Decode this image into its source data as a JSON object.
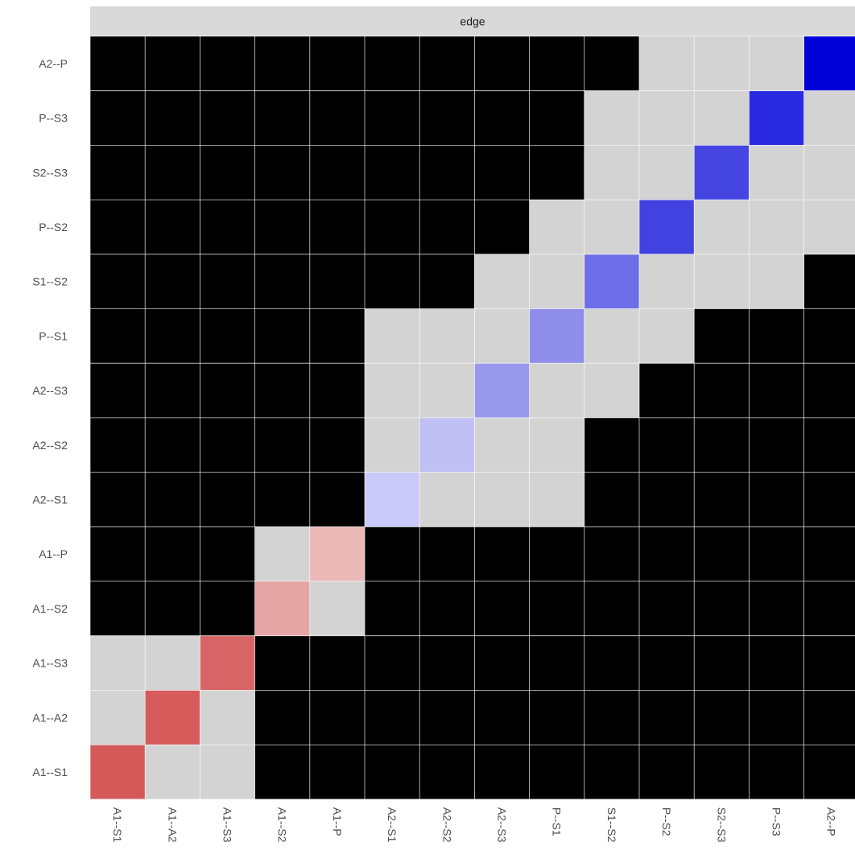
{
  "chart_data": {
    "type": "heatmap",
    "title": "",
    "xlabel": "",
    "ylabel": "",
    "facet_label": "edge",
    "x_categories": [
      "A1--S1",
      "A1--A2",
      "A1--S3",
      "A1--S2",
      "A1--P",
      "A2--S1",
      "A2--S2",
      "A2--S3",
      "P--S1",
      "S1--S2",
      "P--S2",
      "S2--S3",
      "P--S3",
      "A2--P"
    ],
    "y_categories": [
      "A1--S1",
      "A1--A2",
      "A1--S3",
      "A1--S2",
      "A1--P",
      "A2--S1",
      "A2--S2",
      "A2--S3",
      "P--S1",
      "S1--S2",
      "P--S2",
      "S2--S3",
      "P--S3",
      "A2--P"
    ],
    "cell_values_note_colors": {
      "black": "#000000",
      "grey": "#d3d3d3"
    },
    "cells": [
      [
        "#d45a5a",
        "#d3d3d3",
        "#d3d3d3",
        "#000000",
        "#000000",
        "#000000",
        "#000000",
        "#000000",
        "#000000",
        "#000000",
        "#000000",
        "#000000",
        "#000000",
        "#000000"
      ],
      [
        "#d3d3d3",
        "#d65c5c",
        "#d3d3d3",
        "#000000",
        "#000000",
        "#000000",
        "#000000",
        "#000000",
        "#000000",
        "#000000",
        "#000000",
        "#000000",
        "#000000",
        "#000000"
      ],
      [
        "#d3d3d3",
        "#d3d3d3",
        "#d76565",
        "#000000",
        "#000000",
        "#000000",
        "#000000",
        "#000000",
        "#000000",
        "#000000",
        "#000000",
        "#000000",
        "#000000",
        "#000000"
      ],
      [
        "#000000",
        "#000000",
        "#000000",
        "#e6a5a5",
        "#d3d3d3",
        "#000000",
        "#000000",
        "#000000",
        "#000000",
        "#000000",
        "#000000",
        "#000000",
        "#000000",
        "#000000"
      ],
      [
        "#000000",
        "#000000",
        "#000000",
        "#d3d3d3",
        "#ebb8b8",
        "#000000",
        "#000000",
        "#000000",
        "#000000",
        "#000000",
        "#000000",
        "#000000",
        "#000000",
        "#000000"
      ],
      [
        "#000000",
        "#000000",
        "#000000",
        "#000000",
        "#000000",
        "#cacafa",
        "#d3d3d3",
        "#d3d3d3",
        "#d3d3d3",
        "#000000",
        "#000000",
        "#000000",
        "#000000",
        "#000000"
      ],
      [
        "#000000",
        "#000000",
        "#000000",
        "#000000",
        "#000000",
        "#d3d3d3",
        "#c0c0f4",
        "#d3d3d3",
        "#d3d3d3",
        "#000000",
        "#000000",
        "#000000",
        "#000000",
        "#000000"
      ],
      [
        "#000000",
        "#000000",
        "#000000",
        "#000000",
        "#000000",
        "#d3d3d3",
        "#d3d3d3",
        "#9898ec",
        "#d3d3d3",
        "#d3d3d3",
        "#000000",
        "#000000",
        "#000000",
        "#000000"
      ],
      [
        "#000000",
        "#000000",
        "#000000",
        "#000000",
        "#000000",
        "#d3d3d3",
        "#d3d3d3",
        "#d3d3d3",
        "#8e8eea",
        "#d3d3d3",
        "#d3d3d3",
        "#000000",
        "#000000",
        "#000000"
      ],
      [
        "#000000",
        "#000000",
        "#000000",
        "#000000",
        "#000000",
        "#000000",
        "#000000",
        "#d3d3d3",
        "#d3d3d3",
        "#6e6ee8",
        "#d3d3d3",
        "#d3d3d3",
        "#d3d3d3",
        "#000000"
      ],
      [
        "#000000",
        "#000000",
        "#000000",
        "#000000",
        "#000000",
        "#000000",
        "#000000",
        "#000000",
        "#d3d3d3",
        "#d3d3d3",
        "#4242e0",
        "#d3d3d3",
        "#d3d3d3",
        "#d3d3d3"
      ],
      [
        "#000000",
        "#000000",
        "#000000",
        "#000000",
        "#000000",
        "#000000",
        "#000000",
        "#000000",
        "#000000",
        "#d3d3d3",
        "#d3d3d3",
        "#4545e2",
        "#d3d3d3",
        "#d3d3d3"
      ],
      [
        "#000000",
        "#000000",
        "#000000",
        "#000000",
        "#000000",
        "#000000",
        "#000000",
        "#000000",
        "#000000",
        "#d3d3d3",
        "#d3d3d3",
        "#d3d3d3",
        "#2a2ae0",
        "#d3d3d3"
      ],
      [
        "#000000",
        "#000000",
        "#000000",
        "#000000",
        "#000000",
        "#000000",
        "#000000",
        "#000000",
        "#000000",
        "#000000",
        "#d3d3d3",
        "#d3d3d3",
        "#d3d3d3",
        "#0000d8"
      ]
    ],
    "legend": "none",
    "grid": true,
    "colors": {
      "strip_background": "#d9d9d9",
      "strip_text": "#1a1a1a",
      "axis_text": "#4d4d4d",
      "gridline": "#ffffff"
    }
  }
}
